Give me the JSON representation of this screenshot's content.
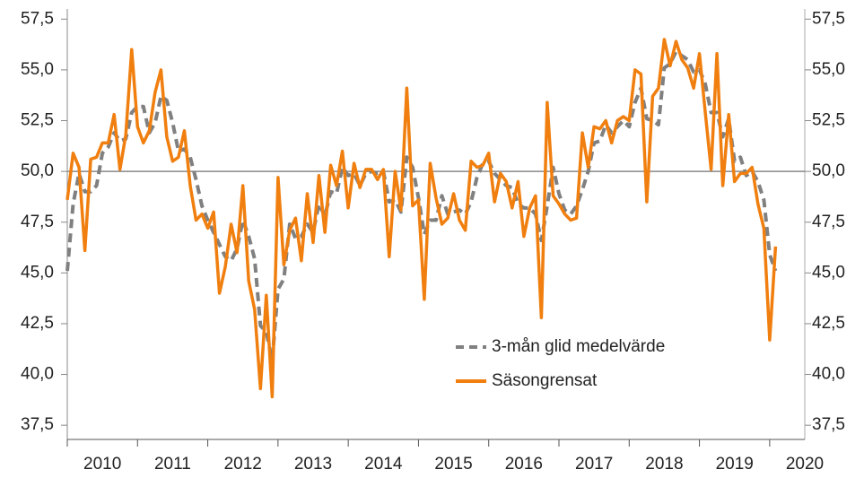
{
  "chart_data": {
    "type": "line",
    "x": [
      2010.0,
      2010.083,
      2010.167,
      2010.25,
      2010.333,
      2010.417,
      2010.5,
      2010.583,
      2010.667,
      2010.75,
      2010.833,
      2010.917,
      2011.0,
      2011.083,
      2011.167,
      2011.25,
      2011.333,
      2011.417,
      2011.5,
      2011.583,
      2011.667,
      2011.75,
      2011.833,
      2011.917,
      2012.0,
      2012.083,
      2012.167,
      2012.25,
      2012.333,
      2012.417,
      2012.5,
      2012.583,
      2012.667,
      2012.75,
      2012.833,
      2012.917,
      2013.0,
      2013.083,
      2013.167,
      2013.25,
      2013.333,
      2013.417,
      2013.5,
      2013.583,
      2013.667,
      2013.75,
      2013.833,
      2013.917,
      2014.0,
      2014.083,
      2014.167,
      2014.25,
      2014.333,
      2014.417,
      2014.5,
      2014.583,
      2014.667,
      2014.75,
      2014.833,
      2014.917,
      2015.0,
      2015.083,
      2015.167,
      2015.25,
      2015.333,
      2015.417,
      2015.5,
      2015.583,
      2015.667,
      2015.75,
      2015.833,
      2015.917,
      2016.0,
      2016.083,
      2016.167,
      2016.25,
      2016.333,
      2016.417,
      2016.5,
      2016.583,
      2016.667,
      2016.75,
      2016.833,
      2016.917,
      2017.0,
      2017.083,
      2017.167,
      2017.25,
      2017.333,
      2017.417,
      2017.5,
      2017.583,
      2017.667,
      2017.75,
      2017.833,
      2017.917,
      2018.0,
      2018.083,
      2018.167,
      2018.25,
      2018.333,
      2018.417,
      2018.5,
      2018.583,
      2018.667,
      2018.75,
      2018.833,
      2018.917,
      2019.0,
      2019.083,
      2019.167,
      2019.25,
      2019.333,
      2019.417,
      2019.5,
      2019.583,
      2019.667,
      2019.75,
      2019.833,
      2019.917,
      2020.0,
      2020.083
    ],
    "series": [
      {
        "name": "3-mån glid medelvärde",
        "color": "#808080",
        "dash": true,
        "values": [
          45.1,
          48.4,
          49.9,
          49.0,
          49.0,
          49.3,
          50.9,
          51.2,
          51.9,
          51.5,
          51.6,
          52.9,
          53.2,
          53.2,
          51.9,
          52.4,
          53.7,
          53.5,
          52.4,
          51.0,
          51.1,
          50.7,
          49.6,
          48.3,
          47.6,
          47.0,
          46.4,
          45.8,
          45.6,
          46.2,
          47.6,
          46.8,
          45.7,
          42.4,
          42.1,
          40.7,
          44.2,
          44.7,
          47.4,
          46.7,
          46.8,
          47.4,
          47.0,
          48.4,
          47.8,
          49.0,
          48.9,
          50.2,
          49.8,
          49.9,
          49.3,
          49.9,
          50.0,
          49.9,
          50.0,
          48.5,
          48.6,
          48.0,
          50.7,
          50.2,
          48.7,
          46.9,
          47.6,
          47.6,
          48.8,
          47.9,
          48.0,
          48.1,
          47.9,
          48.5,
          49.7,
          50.4,
          50.5,
          49.9,
          49.6,
          49.3,
          49.2,
          48.4,
          48.2,
          48.2,
          47.9,
          46.6,
          48.3,
          50.2,
          48.9,
          48.1,
          47.9,
          48.3,
          49.1,
          50.0,
          51.4,
          51.5,
          52.3,
          51.9,
          52.2,
          52.5,
          52.2,
          53.4,
          54.1,
          52.6,
          52.5,
          52.3,
          55.1,
          55.3,
          55.9,
          55.7,
          55.5,
          54.9,
          55.0,
          54.3,
          52.9,
          52.9,
          51.7,
          52.6,
          50.5,
          50.7,
          49.8,
          50.0,
          49.5,
          48.6,
          45.9,
          45.1
        ]
      },
      {
        "name": "Säsongrensat",
        "color": "#f07f0f",
        "dash": false,
        "values": [
          48.6,
          50.9,
          50.2,
          46.1,
          50.6,
          50.7,
          51.4,
          51.4,
          52.8,
          50.1,
          51.8,
          56.0,
          52.2,
          51.4,
          52.0,
          53.9,
          55.0,
          51.7,
          50.5,
          50.7,
          52.0,
          49.3,
          47.6,
          47.9,
          47.2,
          48.0,
          44.0,
          45.3,
          47.4,
          46.0,
          49.3,
          44.6,
          43.2,
          39.3,
          43.9,
          38.9,
          49.7,
          45.4,
          47.1,
          47.7,
          45.6,
          48.9,
          46.5,
          49.8,
          47.0,
          50.3,
          49.3,
          51.0,
          48.2,
          50.4,
          49.2,
          50.1,
          50.1,
          49.6,
          50.1,
          45.8,
          50.0,
          48.1,
          54.1,
          48.3,
          48.6,
          43.7,
          50.4,
          48.7,
          47.4,
          47.7,
          48.9,
          47.6,
          47.1,
          50.5,
          50.2,
          50.3,
          50.9,
          48.5,
          49.9,
          49.5,
          48.2,
          49.5,
          46.8,
          48.2,
          48.8,
          42.8,
          53.4,
          48.8,
          48.4,
          47.9,
          47.6,
          47.7,
          51.9,
          50.2,
          52.2,
          52.1,
          52.5,
          51.4,
          52.5,
          52.7,
          52.5,
          55.0,
          54.8,
          48.5,
          53.7,
          54.1,
          56.5,
          55.2,
          56.4,
          55.5,
          55.1,
          54.1,
          55.8,
          52.9,
          50.1,
          55.8,
          49.3,
          52.8,
          49.5,
          49.9,
          49.9,
          50.2,
          48.4,
          47.2,
          41.7,
          46.3
        ]
      }
    ],
    "xlim": [
      2010,
      2020.5
    ],
    "xticks": [
      2010,
      2011,
      2012,
      2013,
      2014,
      2015,
      2016,
      2017,
      2018,
      2019,
      2020
    ],
    "xlabels": [
      "2010",
      "2011",
      "2012",
      "2013",
      "2014",
      "2015",
      "2016",
      "2017",
      "2018",
      "2019",
      "2020"
    ],
    "ylim": [
      36.8,
      58.0
    ],
    "yticks": [
      {
        "value": 37.5,
        "label": "37,5"
      },
      {
        "value": 40,
        "label": "40,0"
      },
      {
        "value": 42.5,
        "label": "42,5"
      },
      {
        "value": 45,
        "label": "45,0"
      },
      {
        "value": 47.5,
        "label": "47,5"
      },
      {
        "value": 50,
        "label": "50,0"
      },
      {
        "value": 52.5,
        "label": "52,5"
      },
      {
        "value": 55,
        "label": "55,0"
      },
      {
        "value": 57.5,
        "label": "57,5"
      }
    ],
    "hline": 50
  }
}
